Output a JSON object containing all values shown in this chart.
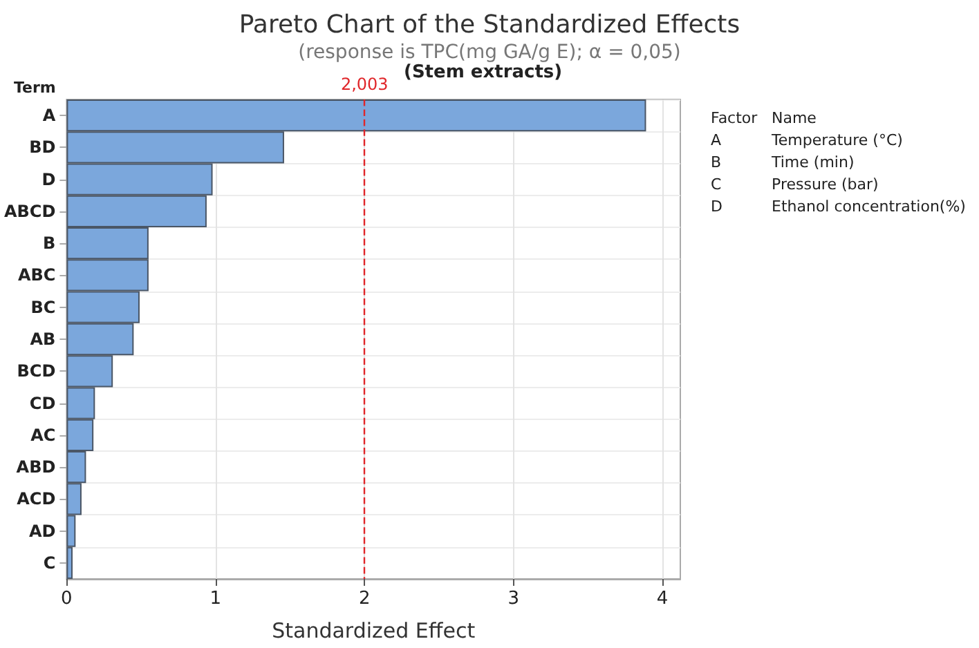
{
  "chart_data": {
    "type": "bar",
    "orientation": "horizontal",
    "title": "Pareto Chart of the Standardized Effects",
    "subtitle": "(response is TPC(mg GA/g E); α = 0,05)",
    "xlabel": "Standardized Effect",
    "ylabel": "Term",
    "categories": [
      "A",
      "BD",
      "D",
      "ABCD",
      "B",
      "ABC",
      "BC",
      "AB",
      "BCD",
      "CD",
      "AC",
      "ABD",
      "ACD",
      "AD",
      "C"
    ],
    "values": [
      3.89,
      1.46,
      0.98,
      0.94,
      0.55,
      0.55,
      0.49,
      0.45,
      0.31,
      0.19,
      0.18,
      0.13,
      0.1,
      0.06,
      0.04
    ],
    "color": "#7ba7dc",
    "xlim": [
      0,
      4.12
    ],
    "xticks": [
      0,
      1,
      2,
      3,
      4
    ],
    "grid": true,
    "ref_lines": [
      {
        "axis": "x",
        "value": 2.003,
        "label": "2,003",
        "color": "#e0262a",
        "line_style": "dashed"
      }
    ],
    "annotations": [
      "(Stem extracts)",
      "Factor",
      "Name",
      "A",
      "Temperature (°C)",
      "B",
      "Time (min)",
      "C",
      "Pressure (bar)",
      "D",
      "Ethanol concentration(%)"
    ]
  }
}
